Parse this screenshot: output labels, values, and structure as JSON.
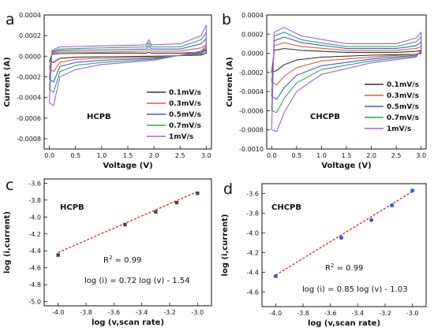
{
  "panels": [
    {
      "letter": "a",
      "sample": "HCPB",
      "chart_data": {
        "type": "line",
        "xlabel": "Voltage (V)",
        "ylabel": "Current (A)",
        "xlim": [
          -0.1,
          3.1
        ],
        "ylim": [
          -0.0009,
          0.0004
        ],
        "xticks": [
          "0.0",
          "0.5",
          "1.0",
          "1.5",
          "2.0",
          "2.5",
          "3.0"
        ],
        "xtick_values": [
          0,
          0.5,
          1,
          1.5,
          2,
          2.5,
          3
        ],
        "yticks": [
          "-0.0008",
          "-0.0006",
          "-0.0004",
          "-0.0002",
          "0.0000",
          "0.0002",
          "0.0004"
        ],
        "ytick_values": [
          -0.0008,
          -0.0006,
          -0.0004,
          -0.0002,
          0,
          0.0002,
          0.0004
        ],
        "legend_position": "center-right",
        "series": [
          {
            "name": "0.1mV/s",
            "color": "#333333",
            "top": [
              [
                0.0,
                -5e-05
              ],
              [
                0.05,
                2e-05
              ],
              [
                0.2,
                2.5e-05
              ],
              [
                1.0,
                3e-05
              ],
              [
                1.85,
                3e-05
              ],
              [
                1.9,
                4e-05
              ],
              [
                1.95,
                3e-05
              ],
              [
                2.5,
                3e-05
              ],
              [
                2.9,
                4e-05
              ],
              [
                3.0,
                6e-05
              ]
            ],
            "bottom": [
              [
                3.0,
                3e-05
              ],
              [
                2.9,
                1e-05
              ],
              [
                2.0,
                0.0
              ],
              [
                1.0,
                -5e-06
              ],
              [
                0.5,
                -1e-05
              ],
              [
                0.2,
                -2e-05
              ],
              [
                0.08,
                -6e-05
              ],
              [
                0.0,
                -5e-05
              ]
            ]
          },
          {
            "name": "0.3mV/s",
            "color": "#d4633a",
            "top": [
              [
                0.0,
                -0.00012
              ],
              [
                0.05,
                3e-05
              ],
              [
                0.2,
                4e-05
              ],
              [
                1.0,
                4e-05
              ],
              [
                1.85,
                5e-05
              ],
              [
                1.9,
                7e-05
              ],
              [
                1.95,
                5e-05
              ],
              [
                2.5,
                5e-05
              ],
              [
                2.9,
                8e-05
              ],
              [
                3.0,
                0.00011
              ]
            ],
            "bottom": [
              [
                3.0,
                5e-05
              ],
              [
                2.9,
                2e-05
              ],
              [
                2.0,
                -1e-05
              ],
              [
                1.0,
                -2e-05
              ],
              [
                0.5,
                -3e-05
              ],
              [
                0.2,
                -6e-05
              ],
              [
                0.08,
                -0.00015
              ],
              [
                0.0,
                -0.00012
              ]
            ]
          },
          {
            "name": "0.5mV/s",
            "color": "#3a5fcd",
            "top": [
              [
                0.0,
                -0.00022
              ],
              [
                0.05,
                4e-05
              ],
              [
                0.2,
                5.5e-05
              ],
              [
                1.0,
                6e-05
              ],
              [
                1.85,
                7e-05
              ],
              [
                1.9,
                0.0001
              ],
              [
                1.95,
                7e-05
              ],
              [
                2.5,
                7e-05
              ],
              [
                2.9,
                0.00012
              ],
              [
                3.0,
                0.00017
              ]
            ],
            "bottom": [
              [
                3.0,
                7e-05
              ],
              [
                2.9,
                3e-05
              ],
              [
                2.0,
                -2e-05
              ],
              [
                1.0,
                -4e-05
              ],
              [
                0.5,
                -6e-05
              ],
              [
                0.2,
                -0.0001
              ],
              [
                0.08,
                -0.00025
              ],
              [
                0.0,
                -0.00022
              ]
            ]
          },
          {
            "name": "0.7mV/s",
            "color": "#3aa05a",
            "top": [
              [
                0.0,
                -0.00032
              ],
              [
                0.05,
                5e-05
              ],
              [
                0.2,
                7e-05
              ],
              [
                1.0,
                8e-05
              ],
              [
                1.85,
                9e-05
              ],
              [
                1.9,
                0.00013
              ],
              [
                1.95,
                9e-05
              ],
              [
                2.5,
                9e-05
              ],
              [
                2.9,
                0.00016
              ],
              [
                3.0,
                0.00023
              ]
            ],
            "bottom": [
              [
                3.0,
                8e-05
              ],
              [
                2.9,
                4e-05
              ],
              [
                2.0,
                -3e-05
              ],
              [
                1.0,
                -6e-05
              ],
              [
                0.5,
                -9e-05
              ],
              [
                0.2,
                -0.00015
              ],
              [
                0.08,
                -0.00035
              ],
              [
                0.0,
                -0.00032
              ]
            ]
          },
          {
            "name": "1mV/s",
            "color": "#a060d8",
            "top": [
              [
                0.0,
                -0.00045
              ],
              [
                0.05,
                6e-05
              ],
              [
                0.2,
                9e-05
              ],
              [
                1.0,
                0.0001
              ],
              [
                1.85,
                0.00011
              ],
              [
                1.9,
                0.00016
              ],
              [
                1.95,
                0.00011
              ],
              [
                2.5,
                0.00012
              ],
              [
                2.9,
                0.0002
              ],
              [
                3.0,
                0.0003
              ]
            ],
            "bottom": [
              [
                3.0,
                0.0001
              ],
              [
                2.9,
                5e-05
              ],
              [
                2.0,
                -4e-05
              ],
              [
                1.0,
                -8e-05
              ],
              [
                0.5,
                -0.00013
              ],
              [
                0.2,
                -0.0002
              ],
              [
                0.08,
                -0.00048
              ],
              [
                0.0,
                -0.00045
              ]
            ]
          }
        ]
      }
    },
    {
      "letter": "b",
      "sample": "CHCPB",
      "chart_data": {
        "type": "line",
        "xlabel": "Voltage (V)",
        "ylabel": "Current (A)",
        "xlim": [
          -0.1,
          3.1
        ],
        "ylim": [
          -0.001,
          0.0004
        ],
        "xticks": [
          "0.0",
          "0.5",
          "1.0",
          "1.5",
          "2.0",
          "2.5",
          "3.0"
        ],
        "xtick_values": [
          0,
          0.5,
          1,
          1.5,
          2,
          2.5,
          3
        ],
        "yticks": [
          "-0.0010",
          "-0.0008",
          "-0.0006",
          "-0.0004",
          "-0.0002",
          "0.0000",
          "0.0002",
          "0.0004"
        ],
        "ytick_values": [
          -0.001,
          -0.0008,
          -0.0006,
          -0.0004,
          -0.0002,
          0,
          0.0002,
          0.0004
        ],
        "legend_position": "center-right",
        "series": [
          {
            "name": "0.1mV/s",
            "color": "#333333",
            "top": [
              [
                0.0,
                -0.0002
              ],
              [
                0.05,
                3e-05
              ],
              [
                0.25,
                5e-05
              ],
              [
                0.6,
                3e-05
              ],
              [
                1.5,
                1e-05
              ],
              [
                2.5,
                1e-05
              ],
              [
                2.9,
                2e-05
              ],
              [
                3.0,
                3e-05
              ]
            ],
            "bottom": [
              [
                3.0,
                0.0
              ],
              [
                2.9,
                -1e-05
              ],
              [
                2.0,
                -2e-05
              ],
              [
                1.0,
                -4e-05
              ],
              [
                0.5,
                -7e-05
              ],
              [
                0.25,
                -0.00012
              ],
              [
                0.1,
                -0.00018
              ],
              [
                0.0,
                -0.0002
              ]
            ]
          },
          {
            "name": "0.3mV/s",
            "color": "#d4633a",
            "top": [
              [
                0.0,
                -0.0003
              ],
              [
                0.05,
                8e-05
              ],
              [
                0.25,
                0.00011
              ],
              [
                0.6,
                7e-05
              ],
              [
                1.5,
                3e-05
              ],
              [
                2.5,
                3e-05
              ],
              [
                2.9,
                5e-05
              ],
              [
                3.0,
                7e-05
              ]
            ],
            "bottom": [
              [
                3.0,
                1e-05
              ],
              [
                2.9,
                -1e-05
              ],
              [
                2.0,
                -4e-05
              ],
              [
                1.0,
                -8e-05
              ],
              [
                0.5,
                -0.00015
              ],
              [
                0.25,
                -0.00024
              ],
              [
                0.1,
                -0.00033
              ],
              [
                0.0,
                -0.0003
              ]
            ]
          },
          {
            "name": "0.5mV/s",
            "color": "#3a5fcd",
            "top": [
              [
                0.0,
                -0.00045
              ],
              [
                0.05,
                0.00013
              ],
              [
                0.25,
                0.00017
              ],
              [
                0.6,
                0.00011
              ],
              [
                1.5,
                5e-05
              ],
              [
                2.5,
                5e-05
              ],
              [
                2.9,
                8e-05
              ],
              [
                3.0,
                0.00012
              ]
            ],
            "bottom": [
              [
                3.0,
                2e-05
              ],
              [
                2.9,
                -2e-05
              ],
              [
                2.0,
                -6e-05
              ],
              [
                1.0,
                -0.00013
              ],
              [
                0.5,
                -0.00023
              ],
              [
                0.25,
                -0.00036
              ],
              [
                0.1,
                -0.00048
              ],
              [
                0.0,
                -0.00045
              ]
            ]
          },
          {
            "name": "0.7mV/s",
            "color": "#3aa05a",
            "top": [
              [
                0.0,
                -0.0006
              ],
              [
                0.05,
                0.00018
              ],
              [
                0.25,
                0.00022
              ],
              [
                0.6,
                0.00014
              ],
              [
                1.5,
                7e-05
              ],
              [
                2.5,
                7e-05
              ],
              [
                2.9,
                0.00012
              ],
              [
                3.0,
                0.00017
              ]
            ],
            "bottom": [
              [
                3.0,
                3e-05
              ],
              [
                2.9,
                -3e-05
              ],
              [
                2.0,
                -8e-05
              ],
              [
                1.0,
                -0.00017
              ],
              [
                0.5,
                -0.00031
              ],
              [
                0.25,
                -0.00047
              ],
              [
                0.1,
                -0.00062
              ],
              [
                0.0,
                -0.0006
              ]
            ]
          },
          {
            "name": "1mV/s",
            "color": "#a060d8",
            "top": [
              [
                0.0,
                -0.0008
              ],
              [
                0.05,
                0.00022
              ],
              [
                0.25,
                0.00027
              ],
              [
                0.6,
                0.00018
              ],
              [
                1.5,
                0.0001
              ],
              [
                2.5,
                0.0001
              ],
              [
                2.9,
                0.00016
              ],
              [
                3.0,
                0.00022
              ]
            ],
            "bottom": [
              [
                3.0,
                4e-05
              ],
              [
                2.9,
                -4e-05
              ],
              [
                2.0,
                -0.0001
              ],
              [
                1.0,
                -0.00022
              ],
              [
                0.5,
                -0.0004
              ],
              [
                0.25,
                -0.00062
              ],
              [
                0.1,
                -0.00082
              ],
              [
                0.0,
                -0.0008
              ]
            ]
          }
        ]
      }
    },
    {
      "letter": "c",
      "sample": "HCPB",
      "chart_data": {
        "type": "scatter",
        "xlabel": "log (v,scan rate)",
        "ylabel": "log (i,current)",
        "xlim": [
          -4.1,
          -2.9
        ],
        "ylim": [
          -5.05,
          -3.55
        ],
        "xticks": [
          "-4.0",
          "-3.8",
          "-3.6",
          "-3.4",
          "-3.2",
          "-3.0"
        ],
        "xtick_values": [
          -4.0,
          -3.8,
          -3.6,
          -3.4,
          -3.2,
          -3.0
        ],
        "yticks": [
          "-5.0",
          "-4.8",
          "-4.6",
          "-4.4",
          "-4.2",
          "-4.0",
          "-3.8",
          "-3.6"
        ],
        "ytick_values": [
          -5.0,
          -4.8,
          -4.6,
          -4.4,
          -4.2,
          -4.0,
          -3.8,
          -3.6
        ],
        "marker_color": "#444444",
        "points": [
          [
            -4.0,
            -4.45
          ],
          [
            -3.52,
            -4.09
          ],
          [
            -3.3,
            -3.94
          ],
          [
            -3.15,
            -3.83
          ],
          [
            -3.0,
            -3.72
          ]
        ],
        "fit": {
          "slope": 0.72,
          "intercept": -1.54,
          "x_range": [
            -4.0,
            -3.0
          ],
          "color": "#c0392b"
        },
        "r2_label": "R",
        "r2_value": "= 0.99",
        "equation": "log (i) = 0.72 log (v) - 1.54"
      }
    },
    {
      "letter": "d",
      "sample": "CHCPB",
      "chart_data": {
        "type": "scatter",
        "xlabel": "log (v,scan rate)",
        "ylabel": "log (i,current)",
        "xlim": [
          -4.1,
          -2.9
        ],
        "ylim": [
          -4.75,
          -3.5
        ],
        "xticks": [
          "-4.0",
          "-3.8",
          "-3.6",
          "-3.4",
          "-3.2",
          "-3.0"
        ],
        "xtick_values": [
          -4.0,
          -3.8,
          -3.6,
          -3.4,
          -3.2,
          -3.0
        ],
        "yticks": [
          "-4.6",
          "-4.4",
          "-4.2",
          "-4.0",
          "-3.8",
          "-3.6"
        ],
        "ytick_values": [
          -4.6,
          -4.4,
          -4.2,
          -4.0,
          -3.8,
          -3.6
        ],
        "marker_color": "#3a5fcd",
        "points": [
          [
            -4.0,
            -4.44
          ],
          [
            -3.52,
            -4.05
          ],
          [
            -3.3,
            -3.87
          ],
          [
            -3.15,
            -3.72
          ],
          [
            -3.0,
            -3.57
          ]
        ],
        "fit": {
          "slope": 0.85,
          "intercept": -1.03,
          "x_range": [
            -4.0,
            -3.0
          ],
          "color": "#c0392b"
        },
        "r2_label": "R",
        "r2_value": "= 0.99",
        "equation": "log (i) = 0.85 log (v) - 1.03"
      }
    }
  ]
}
